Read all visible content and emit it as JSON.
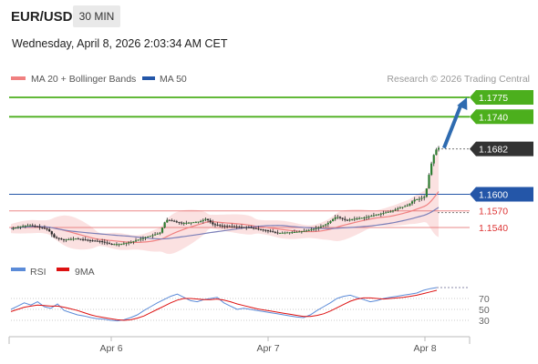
{
  "header": {
    "pair": "EUR/USD",
    "timeframe": "30 MIN",
    "datetime": "Wednesday, April 8, 2026 2:03:34 AM CET"
  },
  "legend": {
    "ma20": "MA 20 + Bollinger Bands",
    "ma50": "MA 50",
    "credit": "Research © 2026 Trading Central"
  },
  "colors": {
    "resistance": "#4caf1d",
    "pivot": "#2456a8",
    "support": "#e56b6b",
    "last_price": "#333333",
    "ma20": "#f08080",
    "ma50": "#7b7fb8",
    "rsi": "#5b8bd8",
    "rsi_ma": "#dd1111",
    "arrow": "#2e6bb0"
  },
  "chart_data": [
    {
      "type": "candlestick",
      "title": "EUR/USD 30 MIN",
      "x_labels": [
        "Apr 6",
        "Apr 7",
        "Apr 8"
      ],
      "y_range": [
        1.1505,
        1.18
      ],
      "levels": [
        {
          "label": "1.1775",
          "value": 1.1775,
          "kind": "resistance"
        },
        {
          "label": "1.1740",
          "value": 1.174,
          "kind": "resistance"
        },
        {
          "label": "1.1682",
          "value": 1.1682,
          "kind": "last"
        },
        {
          "label": "1.1600",
          "value": 1.16,
          "kind": "pivot"
        },
        {
          "label": "1.1570",
          "value": 1.157,
          "kind": "support"
        },
        {
          "label": "1.1540",
          "value": 1.154,
          "kind": "support"
        }
      ],
      "series": [
        {
          "name": "MA 20 + Bollinger Bands",
          "indicator": "ma20_bollinger"
        },
        {
          "name": "MA 50",
          "indicator": "ma50"
        }
      ],
      "path": [
        [
          0,
          1.1538
        ],
        [
          6,
          1.1542
        ],
        [
          12,
          1.1544
        ],
        [
          18,
          1.1541
        ],
        [
          24,
          1.1536
        ],
        [
          28,
          1.1522
        ],
        [
          34,
          1.1518
        ],
        [
          42,
          1.152
        ],
        [
          50,
          1.1517
        ],
        [
          58,
          1.1515
        ],
        [
          64,
          1.151
        ],
        [
          70,
          1.151
        ],
        [
          78,
          1.1514
        ],
        [
          84,
          1.152
        ],
        [
          90,
          1.1525
        ],
        [
          96,
          1.153
        ],
        [
          100,
          1.1554
        ],
        [
          104,
          1.1552
        ],
        [
          110,
          1.1548
        ],
        [
          116,
          1.1549
        ],
        [
          122,
          1.1551
        ],
        [
          126,
          1.1556
        ],
        [
          130,
          1.1546
        ],
        [
          136,
          1.1543
        ],
        [
          142,
          1.1542
        ],
        [
          148,
          1.1541
        ],
        [
          154,
          1.154
        ],
        [
          160,
          1.1537
        ],
        [
          166,
          1.1534
        ],
        [
          172,
          1.153
        ],
        [
          178,
          1.1531
        ],
        [
          184,
          1.1532
        ],
        [
          190,
          1.1534
        ],
        [
          196,
          1.1538
        ],
        [
          200,
          1.1542
        ],
        [
          204,
          1.1547
        ],
        [
          210,
          1.156
        ],
        [
          216,
          1.1553
        ],
        [
          222,
          1.1556
        ],
        [
          228,
          1.1558
        ],
        [
          234,
          1.1562
        ],
        [
          240,
          1.1566
        ],
        [
          246,
          1.157
        ],
        [
          250,
          1.1575
        ],
        [
          256,
          1.158
        ],
        [
          260,
          1.159
        ],
        [
          264,
          1.1592
        ],
        [
          267,
          1.1596
        ],
        [
          268,
          1.1608
        ],
        [
          270,
          1.164
        ],
        [
          272,
          1.1665
        ],
        [
          274,
          1.168
        ],
        [
          277,
          1.1686
        ]
      ],
      "forecast_target": 1.1775
    },
    {
      "type": "line",
      "title": "RSI",
      "series": [
        {
          "name": "RSI",
          "values": [
            50,
            56,
            62,
            58,
            64,
            55,
            52,
            60,
            48,
            44,
            40,
            38,
            35,
            33,
            32,
            30,
            29,
            31,
            35,
            40,
            48,
            55,
            62,
            68,
            74,
            78,
            72,
            66,
            64,
            68,
            70,
            72,
            62,
            56,
            50,
            52,
            50,
            48,
            46,
            44,
            42,
            40,
            38,
            36,
            35,
            40,
            48,
            55,
            62,
            70,
            74,
            76,
            72,
            68,
            64,
            66,
            70,
            72,
            74,
            76,
            78,
            80,
            85,
            88,
            90
          ]
        },
        {
          "name": "9MA",
          "values": [
            46,
            50,
            54,
            56,
            58,
            57,
            56,
            56,
            54,
            51,
            48,
            44,
            40,
            37,
            35,
            33,
            31,
            30,
            31,
            34,
            38,
            44,
            50,
            56,
            62,
            67,
            70,
            70,
            69,
            68,
            68,
            69,
            67,
            64,
            60,
            57,
            54,
            51,
            49,
            47,
            45,
            43,
            41,
            39,
            37,
            37,
            39,
            42,
            47,
            53,
            59,
            65,
            69,
            71,
            71,
            70,
            69,
            70,
            71,
            72,
            74,
            76,
            79,
            82,
            85
          ]
        }
      ],
      "y_ticks": [
        70,
        50,
        30
      ],
      "y_range": [
        0,
        100
      ]
    }
  ]
}
